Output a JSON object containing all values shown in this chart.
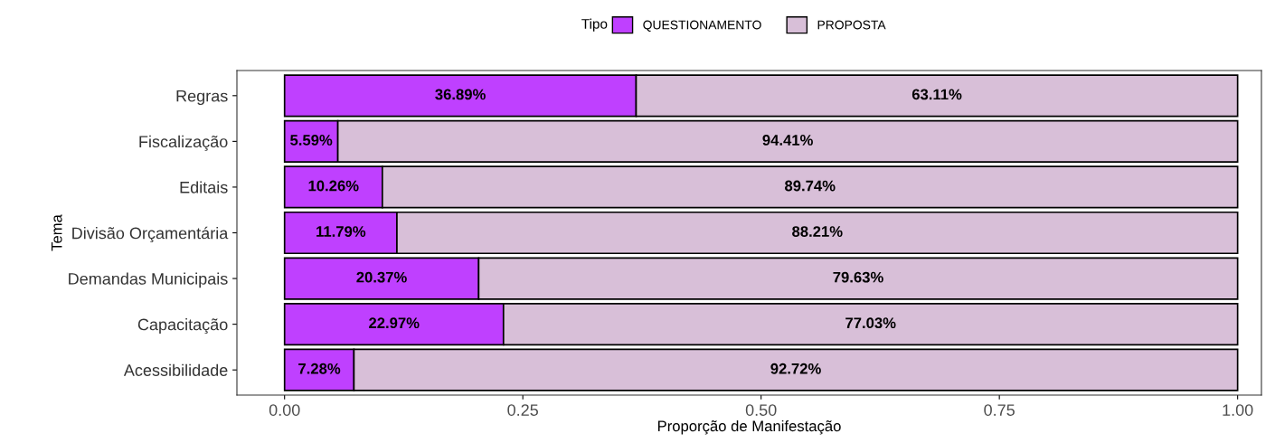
{
  "chart_data": {
    "type": "bar",
    "orientation": "horizontal",
    "stacked": true,
    "xlabel": "Proporção de Manifestação",
    "ylabel": "Tema",
    "legend_title": "Tipo",
    "legend": "top",
    "categories": [
      "Regras",
      "Fiscalização",
      "Editais",
      "Divisão Orçamentária",
      "Demandas Municipais",
      "Capacitação",
      "Acessibilidade"
    ],
    "series": [
      {
        "name": "QUESTIONAMENTO",
        "color": "#bf40ff",
        "values": [
          0.3689,
          0.0559,
          0.1026,
          0.1179,
          0.2037,
          0.2297,
          0.0728
        ],
        "value_labels": [
          "36.89%",
          "5.59%",
          "10.26%",
          "11.79%",
          "20.37%",
          "22.97%",
          "7.28%"
        ]
      },
      {
        "name": "PROPOSTA",
        "color": "#d8bfd8",
        "values": [
          0.6311,
          0.9441,
          0.8974,
          0.8821,
          0.7963,
          0.7703,
          0.9272
        ],
        "value_labels": [
          "63.11%",
          "94.41%",
          "89.74%",
          "88.21%",
          "79.63%",
          "77.03%",
          "92.72%"
        ]
      }
    ],
    "xlim": [
      -0.05,
      1.025
    ],
    "xticks": [
      {
        "value": 0,
        "label": "0.00"
      },
      {
        "value": 0.25,
        "label": "0.25"
      },
      {
        "value": 0.5,
        "label": "0.50"
      },
      {
        "value": 0.75,
        "label": "0.75"
      },
      {
        "value": 1,
        "label": "1.00"
      }
    ],
    "grid": false
  }
}
